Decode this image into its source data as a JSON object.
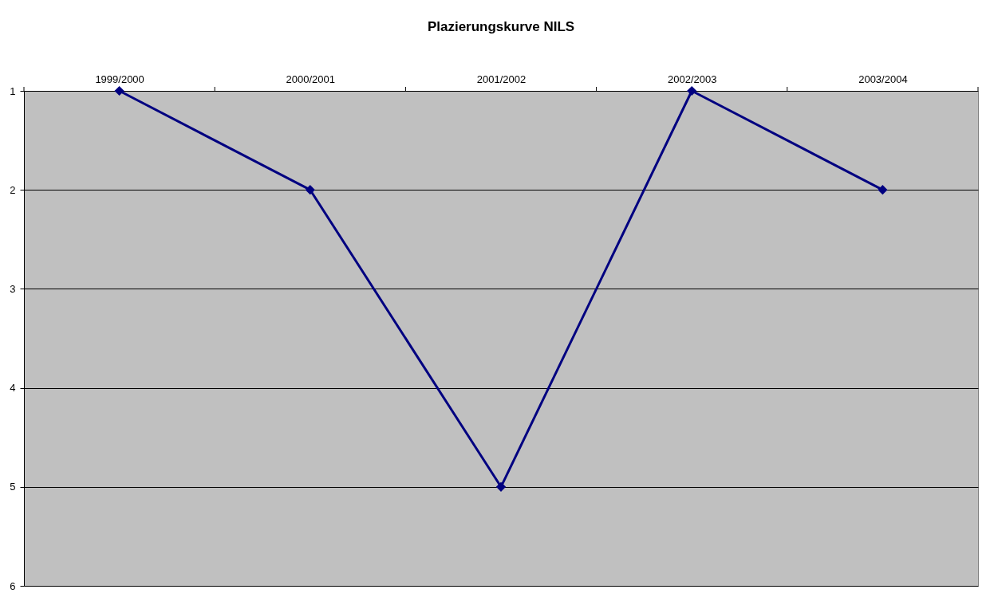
{
  "chart_data": {
    "type": "line",
    "title": "Plazierungskurve NILS",
    "categories": [
      "1999/2000",
      "2000/2001",
      "2001/2002",
      "2002/2003",
      "2003/2004"
    ],
    "series": [
      {
        "color": "#000080",
        "values": [
          1,
          2,
          5,
          1,
          2
        ]
      }
    ],
    "ylim": [
      6,
      1
    ],
    "yticks": [
      1,
      2,
      3,
      4,
      5,
      6
    ],
    "grid": "y",
    "marker": "diamond",
    "line_style": "solid"
  }
}
